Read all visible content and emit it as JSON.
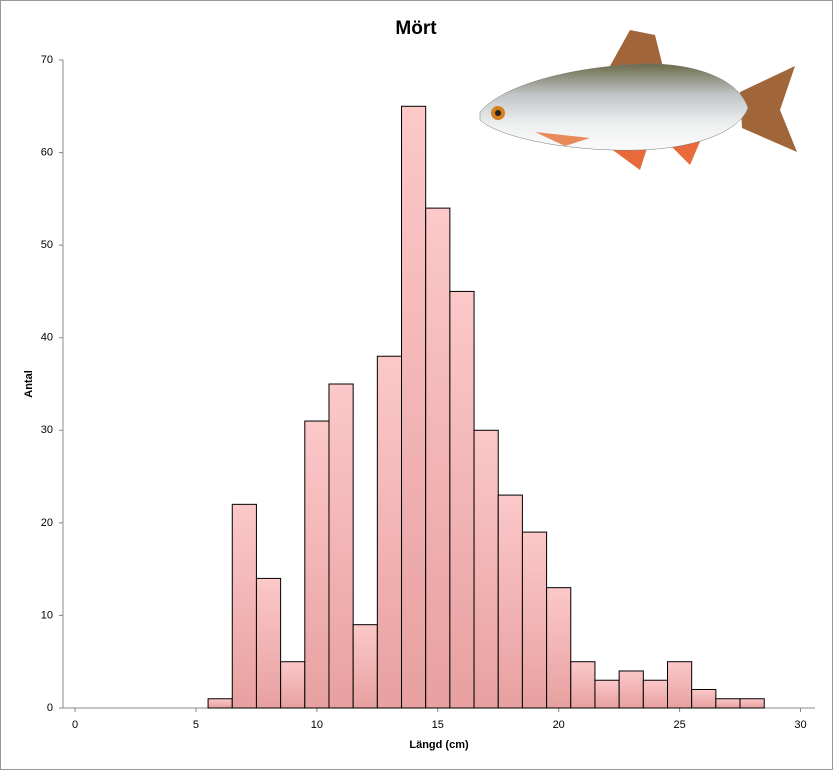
{
  "chart_data": {
    "type": "histogram",
    "title": "Mört",
    "xlabel": "Längd (cm)",
    "ylabel": "Antal",
    "bins": [
      5.5,
      6.5,
      7.5,
      8.5,
      9.5,
      10.5,
      11.5,
      12.5,
      13.5,
      14.5,
      15.5,
      16.5,
      17.5,
      18.5,
      19.5,
      20.5,
      21.5,
      22.5,
      23.5,
      24.5,
      25.5,
      26.5,
      27.5,
      28.5
    ],
    "values": [
      1,
      22,
      14,
      5,
      31,
      35,
      9,
      38,
      65,
      54,
      45,
      30,
      23,
      19,
      13,
      5,
      3,
      4,
      3,
      5,
      2,
      1,
      1
    ],
    "color": "#f4b8b8",
    "xlim": [
      -0.5,
      30.6
    ],
    "xticks": [
      0,
      5,
      10,
      15,
      20,
      25,
      30
    ],
    "ylim": [
      0,
      70
    ],
    "yticks": [
      0,
      10,
      20,
      30,
      40,
      50,
      60,
      70
    ],
    "grid": false
  }
}
